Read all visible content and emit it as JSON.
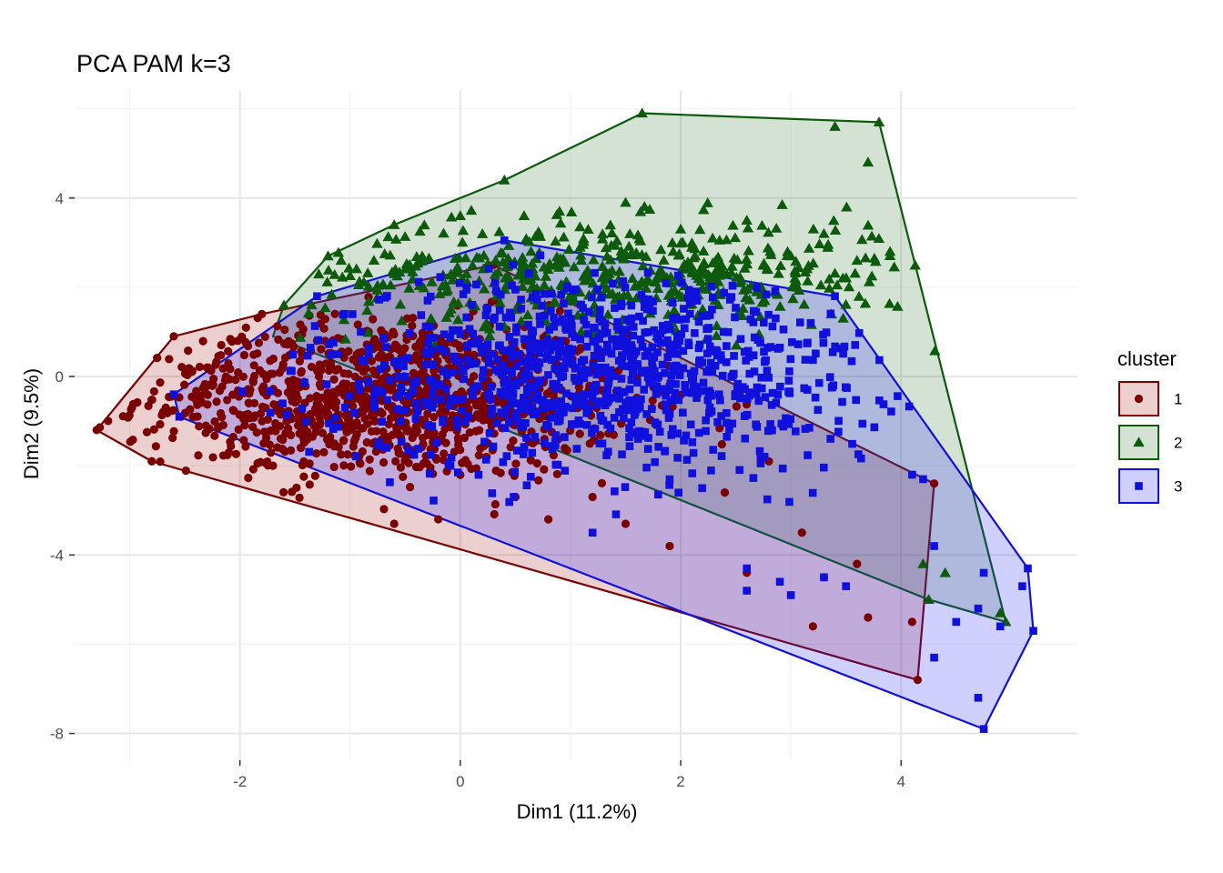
{
  "chart_data": {
    "type": "scatter",
    "title": "PCA PAM k=3",
    "xlabel": "Dim1 (11.2%)",
    "ylabel": "Dim2 (9.5%)",
    "xlim": [
      -3.5,
      5.6
    ],
    "ylim": [
      -8.6,
      6.4
    ],
    "x_ticks": [
      -2,
      0,
      2,
      4
    ],
    "y_ticks": [
      4,
      0,
      -4,
      -8
    ],
    "legend": {
      "title": "cluster",
      "position": "right"
    },
    "series": [
      {
        "name": "1",
        "color": "#7a0000",
        "fill": "rgba(170,40,40,0.22)",
        "shape": "circle",
        "hull": [
          [
            -3.3,
            -1.2
          ],
          [
            -2.8,
            -1.9
          ],
          [
            4.15,
            -6.8
          ],
          [
            4.3,
            -2.4
          ],
          [
            0.3,
            2.5
          ],
          [
            -1.8,
            1.4
          ],
          [
            -2.6,
            0.9
          ]
        ],
        "points": [
          [
            -3.3,
            -1.2
          ],
          [
            -2.8,
            -1.9
          ],
          [
            -2.1,
            -1.7
          ],
          [
            -1.7,
            -2.0
          ],
          [
            -0.6,
            -3.3
          ],
          [
            -0.2,
            -3.2
          ],
          [
            0.5,
            -2.7
          ],
          [
            1.2,
            -2.7
          ],
          [
            1.5,
            -3.3
          ],
          [
            1.9,
            -3.8
          ],
          [
            2.6,
            -4.4
          ],
          [
            3.2,
            -5.6
          ],
          [
            3.3,
            -4.5
          ],
          [
            3.7,
            -5.4
          ],
          [
            4.1,
            -5.5
          ],
          [
            4.15,
            -6.8
          ],
          [
            4.3,
            -2.4
          ],
          [
            0.3,
            2.5
          ],
          [
            -1.8,
            1.4
          ],
          [
            -2.3,
            0.2
          ],
          [
            -2.6,
            0.9
          ],
          [
            3.1,
            -3.5
          ],
          [
            2.4,
            -2.6
          ],
          [
            2.8,
            -1.9
          ],
          [
            3.6,
            -4.2
          ]
        ],
        "cloud": {
          "cx": -0.7,
          "cy": -0.5,
          "sx": 1.1,
          "sy": 0.9,
          "n": 1100
        }
      },
      {
        "name": "2",
        "color": "#0d5a0d",
        "fill": "rgba(40,110,40,0.2)",
        "shape": "triangle",
        "hull": [
          [
            -1.6,
            1.6
          ],
          [
            -1.2,
            2.7
          ],
          [
            -0.6,
            3.4
          ],
          [
            0.4,
            4.4
          ],
          [
            1.65,
            5.9
          ],
          [
            3.8,
            5.7
          ],
          [
            4.95,
            -5.5
          ],
          [
            4.25,
            -5.0
          ],
          [
            -1.7,
            0.9
          ]
        ],
        "points": [
          [
            1.65,
            5.9
          ],
          [
            3.8,
            5.7
          ],
          [
            3.4,
            5.6
          ],
          [
            3.7,
            4.8
          ],
          [
            0.4,
            4.4
          ],
          [
            -0.6,
            3.4
          ],
          [
            -1.2,
            2.7
          ],
          [
            -1.6,
            1.6
          ],
          [
            4.95,
            -5.5
          ],
          [
            4.9,
            -5.3
          ],
          [
            4.25,
            -5.0
          ],
          [
            4.4,
            -4.4
          ],
          [
            4.2,
            -4.2
          ],
          [
            3.0,
            2.7
          ],
          [
            3.6,
            2.6
          ],
          [
            3.3,
            3.2
          ],
          [
            2.6,
            3.5
          ],
          [
            1.5,
            3.9
          ],
          [
            0.0,
            3.6
          ],
          [
            0.9,
            3.7
          ],
          [
            2.0,
            3.3
          ],
          [
            3.9,
            2.8
          ]
        ],
        "cloud": {
          "cx": 1.4,
          "cy": 2.3,
          "sx": 1.4,
          "sy": 0.6,
          "n": 520
        }
      },
      {
        "name": "3",
        "color": "#1010dd",
        "fill": "rgba(40,40,255,0.22)",
        "shape": "square",
        "hull": [
          [
            -2.55,
            -0.9
          ],
          [
            4.75,
            -7.9
          ],
          [
            5.2,
            -5.7
          ],
          [
            5.15,
            -4.3
          ],
          [
            3.4,
            1.8
          ],
          [
            0.4,
            3.05
          ],
          [
            -1.3,
            1.8
          ],
          [
            -2.6,
            -0.4
          ]
        ],
        "points": [
          [
            4.75,
            -7.9
          ],
          [
            4.7,
            -7.2
          ],
          [
            4.3,
            -6.3
          ],
          [
            5.2,
            -5.7
          ],
          [
            4.9,
            -5.6
          ],
          [
            4.5,
            -5.5
          ],
          [
            4.7,
            -5.2
          ],
          [
            5.1,
            -4.7
          ],
          [
            5.15,
            -4.3
          ],
          [
            4.75,
            -4.4
          ],
          [
            3.4,
            1.8
          ],
          [
            0.4,
            3.05
          ],
          [
            -1.3,
            1.8
          ],
          [
            -2.55,
            -0.9
          ],
          [
            -2.6,
            -0.4
          ],
          [
            2.6,
            -4.3
          ],
          [
            3.0,
            -4.9
          ],
          [
            3.3,
            -4.5
          ],
          [
            2.9,
            -4.6
          ],
          [
            4.2,
            -2.3
          ],
          [
            4.1,
            -2.2
          ],
          [
            1.2,
            -3.5
          ],
          [
            2.6,
            -4.8
          ],
          [
            3.5,
            -4.7
          ],
          [
            4.3,
            -3.8
          ]
        ],
        "cloud": {
          "cx": 1.3,
          "cy": 0.1,
          "sx": 1.3,
          "sy": 1.1,
          "n": 1000
        }
      }
    ]
  }
}
